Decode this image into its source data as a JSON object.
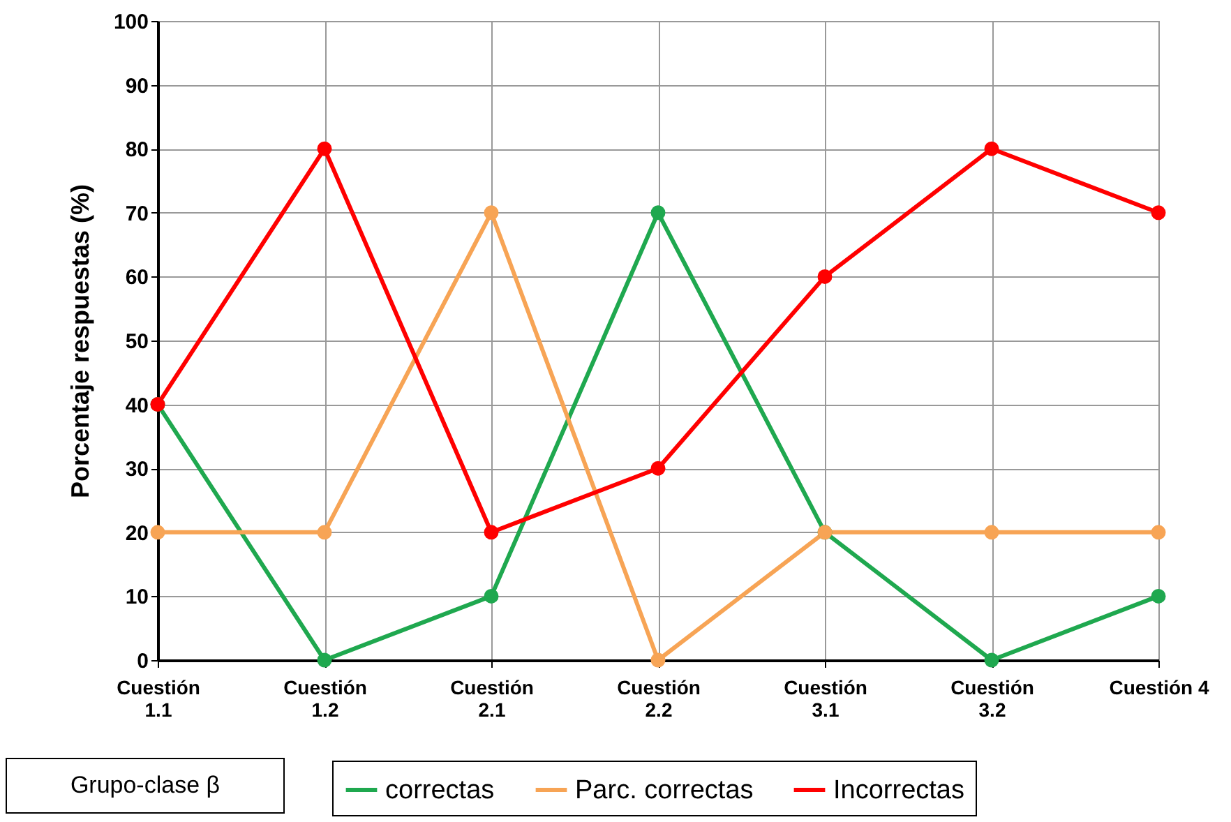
{
  "chart_data": {
    "type": "line",
    "ylabel": "Porcentaje  respuestas  (%)",
    "categories": [
      "Cuestión 1.1",
      "Cuestión 1.2",
      "Cuestión 2.1",
      "Cuestión 2.2",
      "Cuestión 3.1",
      "Cuestión 3.2",
      "Cuestión 4"
    ],
    "series": [
      {
        "name": "correctas",
        "color": "#1fa84f",
        "values": [
          40,
          0,
          10,
          70,
          20,
          0,
          10
        ]
      },
      {
        "name": "Parc. correctas",
        "color": "#f7a455",
        "values": [
          20,
          20,
          70,
          0,
          20,
          20,
          20
        ]
      },
      {
        "name": "Incorrectas",
        "color": "#ff0000",
        "values": [
          40,
          80,
          20,
          30,
          60,
          80,
          70
        ]
      }
    ],
    "ylim": [
      0,
      100
    ],
    "yticks": [
      0,
      10,
      20,
      30,
      40,
      50,
      60,
      70,
      80,
      90,
      100
    ],
    "grid": true,
    "legend": "bottom",
    "marker": "circle",
    "line_style": "solid",
    "annotations": [
      "Grupo-clase β"
    ]
  }
}
